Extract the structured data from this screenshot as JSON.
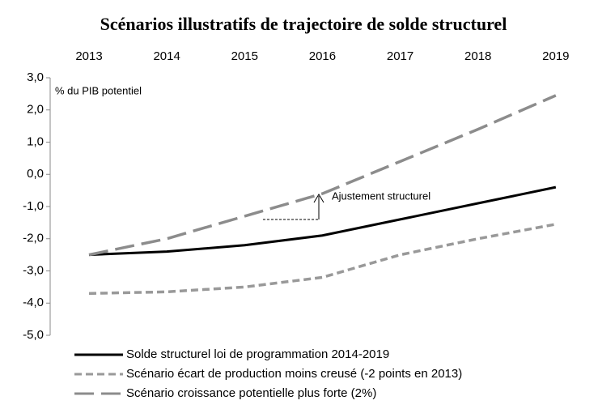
{
  "chart_data": {
    "type": "line",
    "title": "Scénarios illustratifs de trajectoire de solde structurel",
    "y_label": "% du PIB potentiel",
    "annotation": "Ajustement structurel",
    "categories": [
      "2013",
      "2014",
      "2015",
      "2016",
      "2017",
      "2018",
      "2019"
    ],
    "series": [
      {
        "name": "Solde structurel loi de programmation 2014-2019",
        "color": "#000000",
        "dash": "none",
        "values": [
          -2.5,
          -2.4,
          -2.2,
          -1.9,
          -1.4,
          -0.9,
          -0.4
        ]
      },
      {
        "name": "Scénario écart de production moins creusé (-2 points en 2013)",
        "color": "#999999",
        "dash": "9 5",
        "values": [
          -3.7,
          -3.65,
          -3.5,
          -3.2,
          -2.5,
          -2.0,
          -1.55
        ]
      },
      {
        "name": "Scénario croissance potentielle plus forte (2%)",
        "color": "#8c8c8c",
        "dash": "24 9",
        "values": [
          -2.5,
          -2.0,
          -1.3,
          -0.6,
          0.4,
          1.4,
          2.45
        ]
      }
    ],
    "ylim": [
      -5,
      3
    ],
    "yticks": [
      {
        "value": 3,
        "label": "3,0"
      },
      {
        "value": 2,
        "label": "2,0"
      },
      {
        "value": 1,
        "label": "1,0"
      },
      {
        "value": 0,
        "label": "0,0"
      },
      {
        "value": -1,
        "label": "-1,0"
      },
      {
        "value": -2,
        "label": "-2,0"
      },
      {
        "value": -3,
        "label": "-3,0"
      },
      {
        "value": -4,
        "label": "-4,0"
      },
      {
        "value": -5,
        "label": "-5,0"
      }
    ]
  }
}
